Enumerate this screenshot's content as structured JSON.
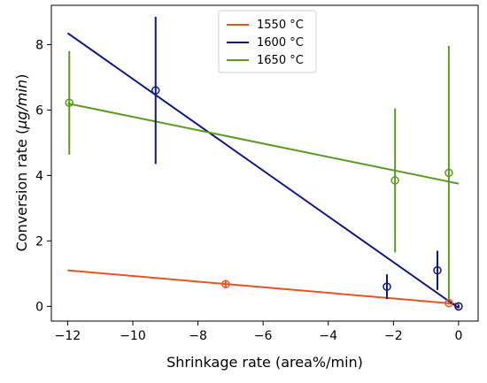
{
  "chart_data": {
    "type": "scatter",
    "title": "",
    "xlabel": "Shrinkage rate (area%/min)",
    "ylabel_prefix": "Conversion rate (",
    "ylabel_unit": "μg/min",
    "ylabel_suffix": ")",
    "xlim": [
      -12.5,
      0.6
    ],
    "ylim": [
      -0.45,
      9.2
    ],
    "xticks": [
      -12,
      -10,
      -8,
      -6,
      -4,
      -2,
      0
    ],
    "yticks": [
      0,
      2,
      4,
      6,
      8
    ],
    "xtick_labels": [
      "−12",
      "−10",
      "−8",
      "−6",
      "−4",
      "−2",
      "0"
    ],
    "ytick_labels": [
      "0",
      "2",
      "4",
      "6",
      "8"
    ],
    "grid": false,
    "legend_position": "top-center",
    "series": [
      {
        "name": "1550 °C",
        "color": "#e8541e",
        "points": [
          {
            "x": -7.15,
            "y": 0.68,
            "err": 0.1
          },
          {
            "x": -0.3,
            "y": 0.1,
            "err": 0.05
          },
          {
            "x": 0.0,
            "y": 0.0,
            "err": 0.05
          }
        ],
        "fit": {
          "x": [
            -12.0,
            0.0
          ],
          "y": [
            1.1,
            0.07
          ]
        }
      },
      {
        "name": "1600 °C",
        "color": "#0e1785",
        "points": [
          {
            "x": -9.3,
            "y": 6.6,
            "err": 2.25
          },
          {
            "x": -2.2,
            "y": 0.6,
            "err": 0.38
          },
          {
            "x": -0.65,
            "y": 1.1,
            "err": 0.6
          },
          {
            "x": 0.0,
            "y": 0.0,
            "err": 0.05
          }
        ],
        "fit": {
          "x": [
            -12.0,
            0.0
          ],
          "y": [
            8.35,
            -0.05
          ]
        }
      },
      {
        "name": "1650 °C",
        "color": "#5a9a1e",
        "points": [
          {
            "x": -11.95,
            "y": 6.22,
            "err": 1.58
          },
          {
            "x": -1.95,
            "y": 3.85,
            "err": 2.2
          },
          {
            "x": -0.3,
            "y": 4.08,
            "err": 3.88
          }
        ],
        "fit": {
          "x": [
            -12.0,
            0.0
          ],
          "y": [
            6.2,
            3.75
          ]
        }
      }
    ]
  }
}
